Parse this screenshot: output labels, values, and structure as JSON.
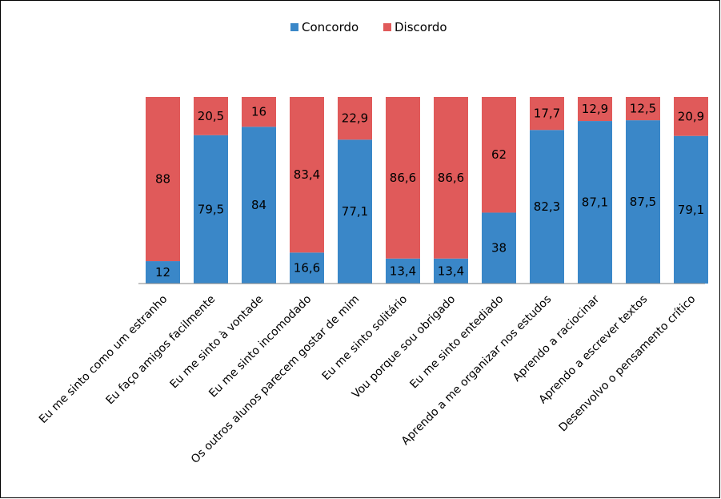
{
  "chart_data": {
    "type": "bar",
    "stacked": true,
    "percent_stacked": true,
    "categories": [
      "Eu me sinto como um estranho",
      "Eu faço amigos facilmente",
      "Eu me sinto à vontade",
      "Eu me sinto incomodado",
      "Os outros alunos parecem gostar de mim",
      "Eu me sinto solitário",
      "Vou porque sou obrigado",
      "Eu me sinto entediado",
      "Aprendo a me organizar nos estudos",
      "Aprendo a raciocinar",
      "Aprendo a escrever textos",
      "Desenvolvo o pensamento crítico"
    ],
    "series": [
      {
        "name": "Concordo",
        "color": "#3A87C8",
        "values": [
          12,
          79.5,
          84,
          16.6,
          77.1,
          13.4,
          13.4,
          38,
          82.3,
          87.1,
          87.5,
          79.1
        ],
        "labels": [
          "12",
          "79,5",
          "84",
          "16,6",
          "77,1",
          "13,4",
          "13,4",
          "38",
          "82,3",
          "87,1",
          "87,5",
          "79,1"
        ]
      },
      {
        "name": "Discordo",
        "color": "#E05A5A",
        "values": [
          88,
          20.5,
          16,
          83.4,
          22.9,
          86.6,
          86.6,
          62,
          17.7,
          12.9,
          12.5,
          20.9
        ],
        "labels": [
          "88",
          "20,5",
          "16",
          "83,4",
          "22,9",
          "86,6",
          "86,6",
          "62",
          "17,7",
          "12,9",
          "12,5",
          "20,9"
        ]
      }
    ],
    "legend_position": "top",
    "grid": false,
    "title": "",
    "xlabel": "",
    "ylabel": ""
  }
}
